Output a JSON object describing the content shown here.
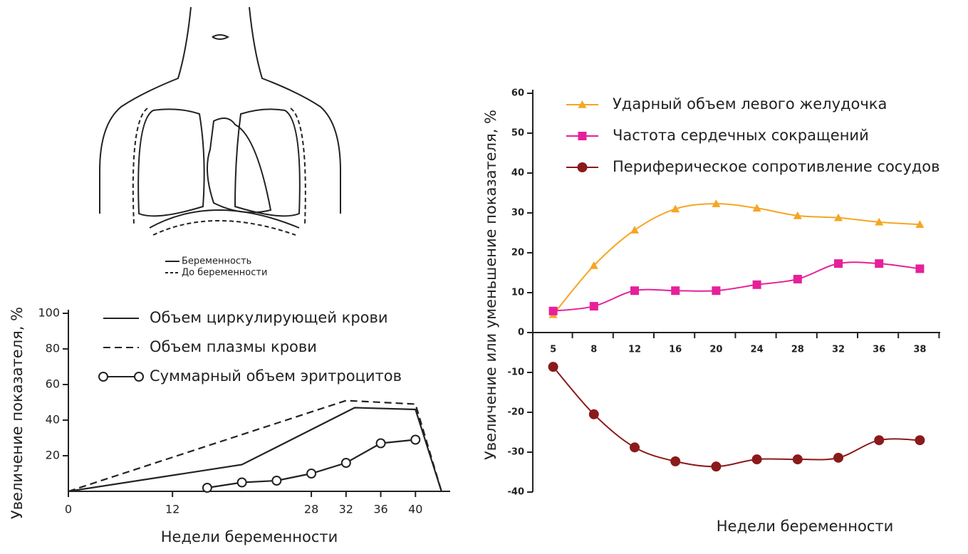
{
  "illustration": {
    "legend": [
      {
        "label": "Беременность",
        "dash": false
      },
      {
        "label": "До беременности",
        "dash": true
      }
    ]
  },
  "chart_data": [
    {
      "type": "line",
      "y_label": "Увеличение показателя, %",
      "x_label": "Недели беременности",
      "xlim": [
        0,
        44
      ],
      "xticks": [
        0,
        12,
        28,
        32,
        36,
        40
      ],
      "ylim": [
        0,
        100
      ],
      "yticks": [
        20,
        40,
        60,
        80,
        100
      ],
      "series": [
        {
          "name": "Объем циркулирующей крови",
          "color": "#222222",
          "dash": false,
          "marker": "none",
          "x": [
            0,
            20,
            33,
            40,
            43
          ],
          "values": [
            0,
            15,
            47,
            46,
            0
          ]
        },
        {
          "name": "Объем плазмы крови",
          "color": "#222222",
          "dash": true,
          "marker": "none",
          "x": [
            0,
            32,
            40,
            43
          ],
          "values": [
            0,
            51,
            49,
            0
          ]
        },
        {
          "name": "Суммарный объем эритроцитов",
          "color": "#222222",
          "dash": false,
          "marker": "circle",
          "x": [
            16,
            20,
            24,
            28,
            32,
            36,
            40
          ],
          "values": [
            2,
            5,
            6,
            10,
            16,
            27,
            29
          ]
        }
      ]
    },
    {
      "type": "line",
      "y_label": "Увеличение или уменьшение показателя, %",
      "x_label": "Недели беременности",
      "categories": [
        "5",
        "8",
        "12",
        "16",
        "20",
        "24",
        "28",
        "32",
        "36",
        "38"
      ],
      "ylim": [
        -40,
        60
      ],
      "yticks": [
        -40,
        -30,
        -20,
        -10,
        0,
        10,
        20,
        30,
        40,
        50,
        60
      ],
      "smooth": true,
      "series": [
        {
          "name": "Ударный объем левого желудочка",
          "color": "#f5a623",
          "marker": "triangle",
          "values": [
            4.5,
            16.8,
            25.7,
            31,
            32.3,
            31.2,
            29.3,
            28.8,
            27.7,
            27.1
          ]
        },
        {
          "name": "Частота сердечных сокращений",
          "color": "#e6209a",
          "marker": "square",
          "values": [
            5.4,
            6.6,
            10.5,
            10.5,
            10.5,
            12,
            13.4,
            17.3,
            17.3,
            16
          ]
        },
        {
          "name": "Периферическое сопротивление сосудов",
          "color": "#8b1a1a",
          "marker": "circle",
          "values": [
            -8.6,
            -20.5,
            -28.8,
            -32.3,
            -33.6,
            -31.8,
            -31.8,
            -31.4,
            -27,
            -27
          ]
        }
      ]
    }
  ]
}
